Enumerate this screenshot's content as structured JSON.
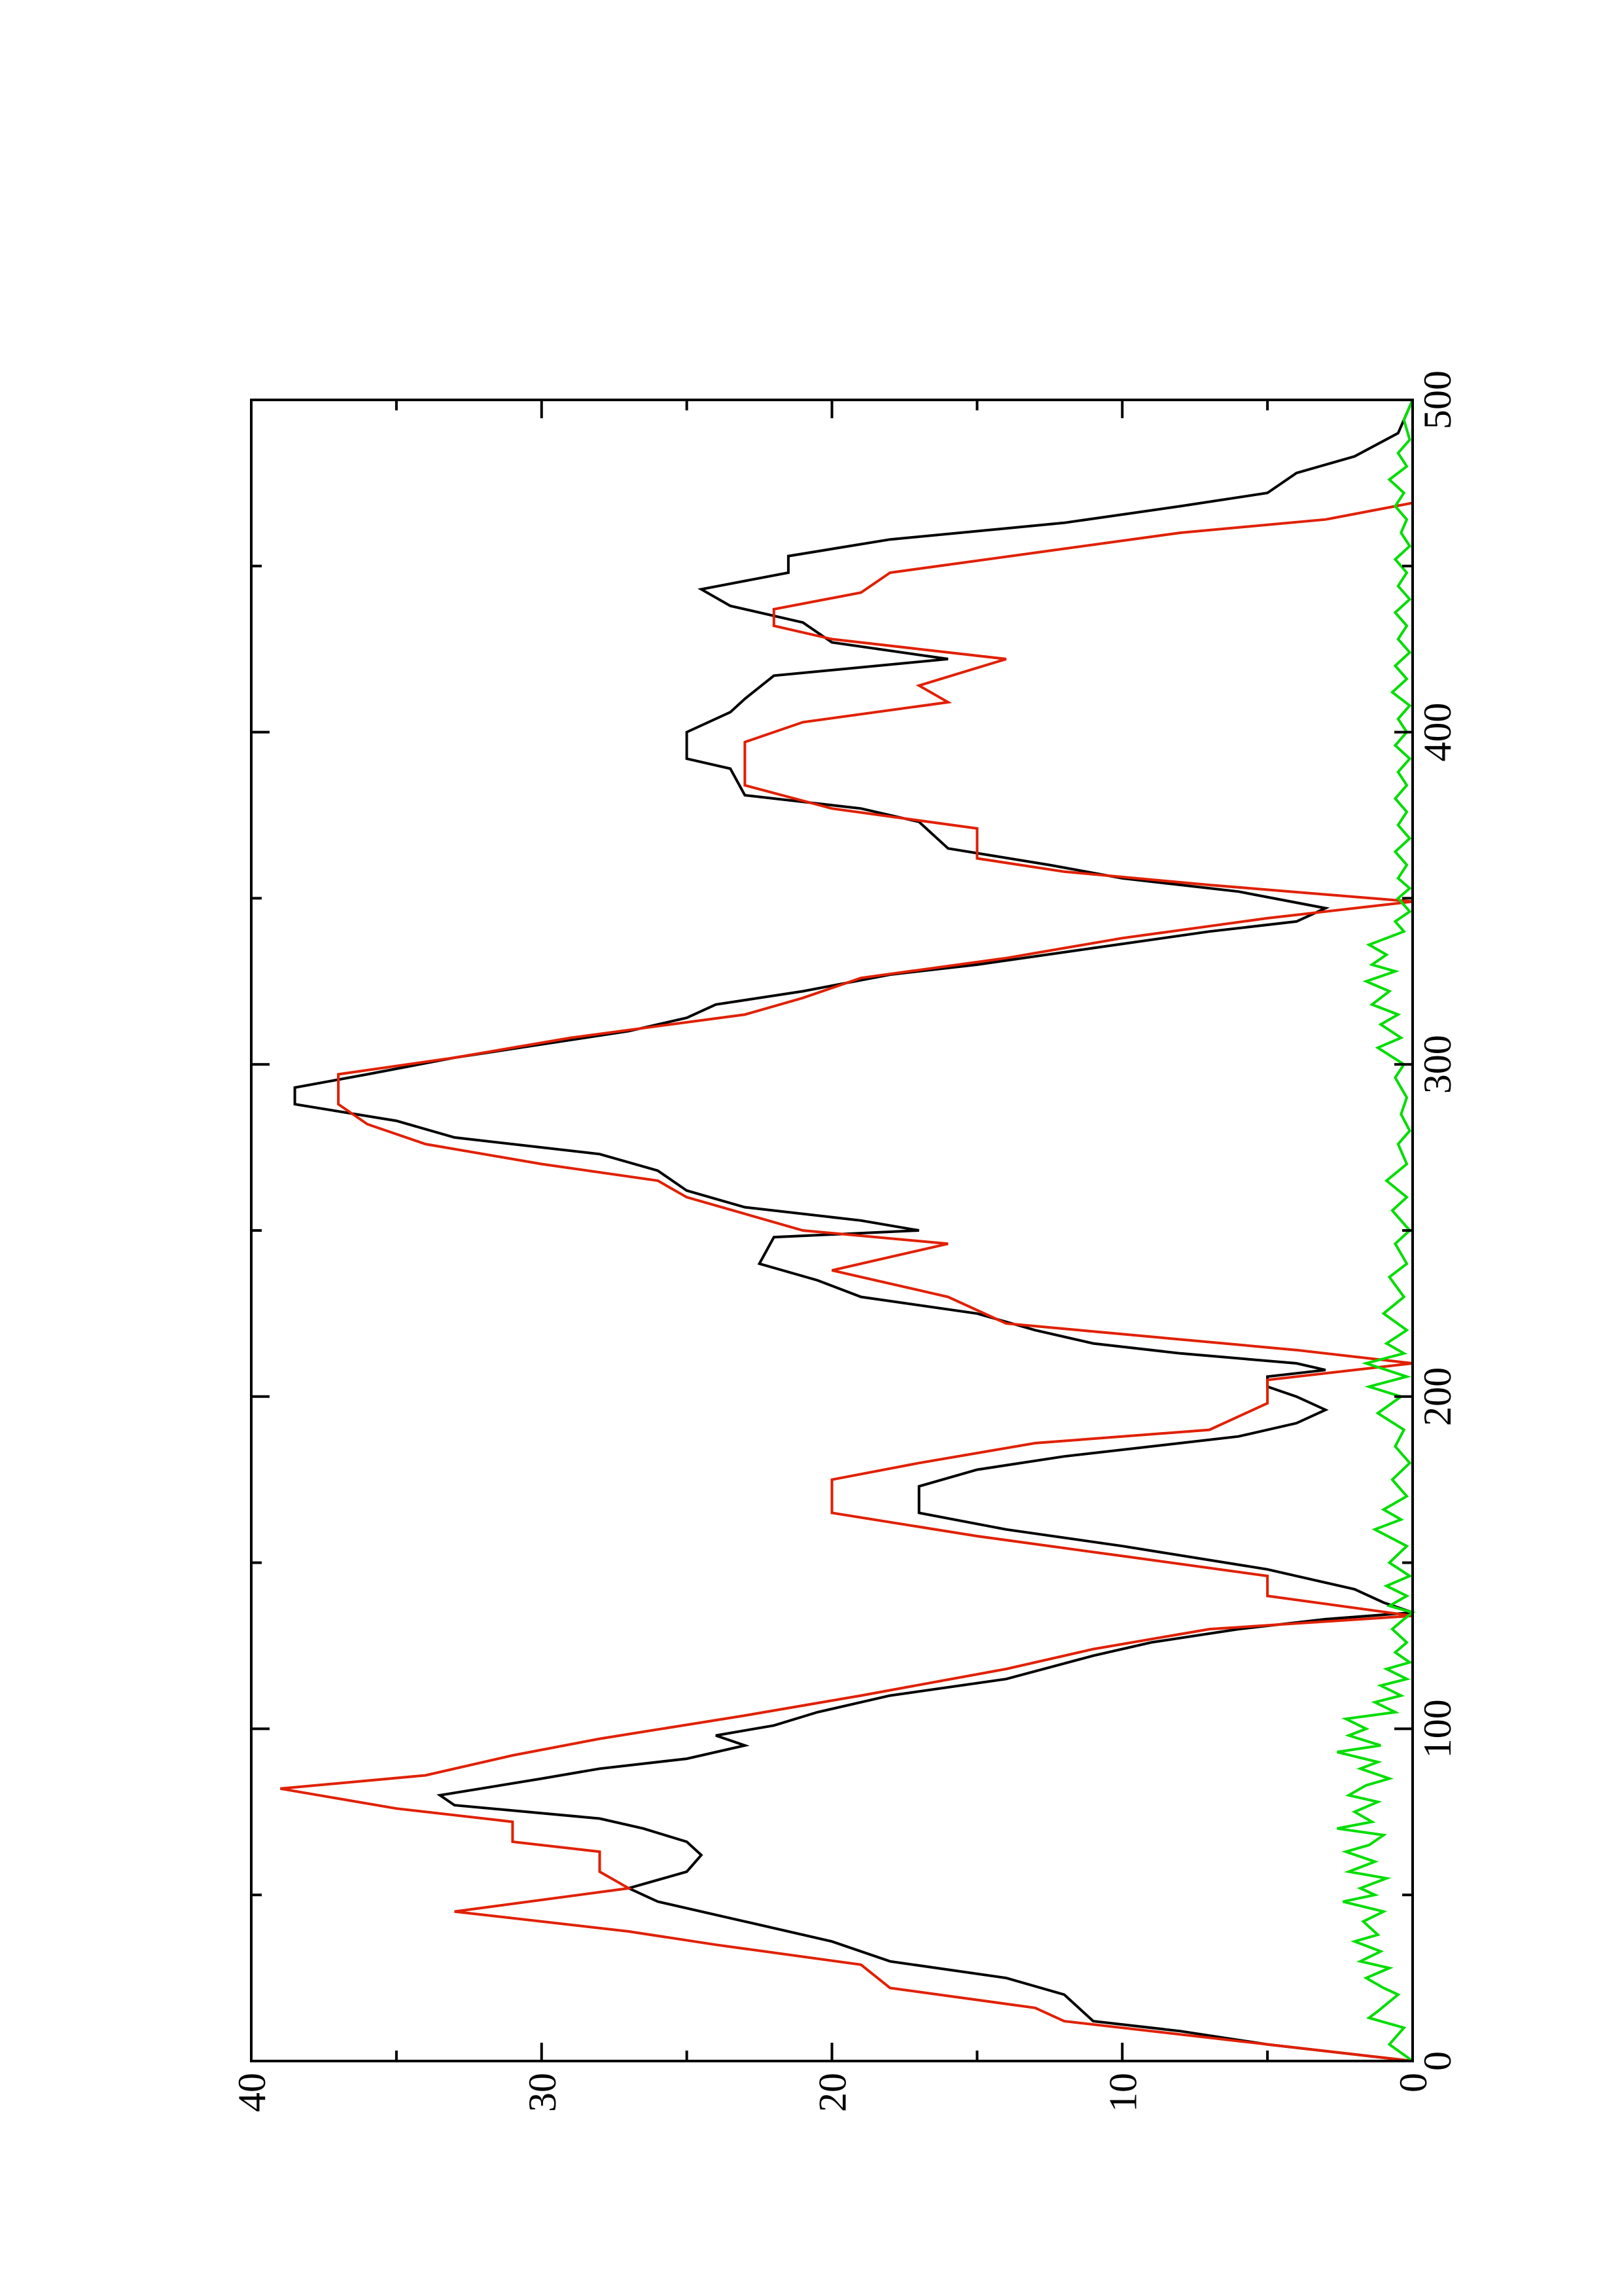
{
  "chart_data": {
    "type": "line",
    "orientation": "rotated-90-ccw",
    "title": "",
    "xlabel": "",
    "ylabel": "",
    "xlim": [
      0,
      500
    ],
    "ylim": [
      0,
      40
    ],
    "x_ticks": [
      0,
      100,
      200,
      300,
      400,
      500
    ],
    "y_ticks": [
      0,
      10,
      20,
      30,
      40
    ],
    "grid": false,
    "legend": "none",
    "series": [
      {
        "color": "#000000",
        "points": [
          [
            0,
            0
          ],
          [
            5,
            5
          ],
          [
            9,
            8
          ],
          [
            12,
            11
          ],
          [
            20,
            12
          ],
          [
            25,
            14
          ],
          [
            30,
            18
          ],
          [
            36,
            20
          ],
          [
            42,
            23
          ],
          [
            48,
            26
          ],
          [
            52,
            27
          ],
          [
            57,
            25
          ],
          [
            62,
            24.5
          ],
          [
            66,
            25
          ],
          [
            70,
            26.5
          ],
          [
            73,
            28
          ],
          [
            77,
            33
          ],
          [
            80,
            33.5
          ],
          [
            85,
            30
          ],
          [
            88,
            28
          ],
          [
            91,
            25
          ],
          [
            95,
            23
          ],
          [
            98,
            24
          ],
          [
            101,
            22
          ],
          [
            105,
            20.5
          ],
          [
            110,
            18
          ],
          [
            115,
            14
          ],
          [
            122,
            11
          ],
          [
            126,
            9
          ],
          [
            130,
            6
          ],
          [
            133,
            3
          ],
          [
            135,
            0
          ],
          [
            138,
            1
          ],
          [
            142,
            2
          ],
          [
            148,
            5
          ],
          [
            155,
            10
          ],
          [
            160,
            14
          ],
          [
            165,
            17
          ],
          [
            173,
            17
          ],
          [
            178,
            15
          ],
          [
            182,
            12
          ],
          [
            186,
            8
          ],
          [
            188,
            6
          ],
          [
            192,
            4
          ],
          [
            196,
            3
          ],
          [
            200,
            4
          ],
          [
            203,
            5
          ],
          [
            206,
            5
          ],
          [
            208,
            3
          ],
          [
            210,
            4
          ],
          [
            213,
            8
          ],
          [
            216,
            11
          ],
          [
            220,
            13
          ],
          [
            225,
            15
          ],
          [
            230,
            19
          ],
          [
            235,
            20.5
          ],
          [
            240,
            22.5
          ],
          [
            248,
            22
          ],
          [
            250,
            17
          ],
          [
            253,
            19
          ],
          [
            257,
            23
          ],
          [
            262,
            25
          ],
          [
            268,
            26
          ],
          [
            273,
            28
          ],
          [
            278,
            33
          ],
          [
            283,
            35
          ],
          [
            288,
            38.5
          ],
          [
            293,
            38.5
          ],
          [
            297,
            36
          ],
          [
            302,
            33
          ],
          [
            306,
            30
          ],
          [
            310,
            27
          ],
          [
            314,
            25
          ],
          [
            318,
            24
          ],
          [
            322,
            21
          ],
          [
            327,
            18
          ],
          [
            330,
            15
          ],
          [
            335,
            11
          ],
          [
            340,
            7
          ],
          [
            343,
            4
          ],
          [
            347,
            3
          ],
          [
            352,
            6
          ],
          [
            356,
            10
          ],
          [
            360,
            12.5
          ],
          [
            365,
            16
          ],
          [
            373,
            17
          ],
          [
            377,
            19
          ],
          [
            381,
            23
          ],
          [
            389,
            23.5
          ],
          [
            392,
            25
          ],
          [
            400,
            25
          ],
          [
            406,
            23.5
          ],
          [
            410,
            23
          ],
          [
            417,
            22
          ],
          [
            422,
            16
          ],
          [
            427,
            20
          ],
          [
            433,
            21
          ],
          [
            438,
            23.5
          ],
          [
            443,
            24.5
          ],
          [
            448,
            21.5
          ],
          [
            453,
            21.5
          ],
          [
            458,
            18
          ],
          [
            463,
            12
          ],
          [
            468,
            8
          ],
          [
            472,
            5
          ],
          [
            478,
            4
          ],
          [
            483,
            2
          ],
          [
            490,
            0.5
          ],
          [
            500,
            0
          ]
        ]
      },
      {
        "color": "#e02000",
        "points": [
          [
            0,
            0
          ],
          [
            6,
            6
          ],
          [
            12,
            12
          ],
          [
            16,
            13
          ],
          [
            22,
            18
          ],
          [
            29,
            19
          ],
          [
            35,
            24
          ],
          [
            39,
            27
          ],
          [
            45,
            33
          ],
          [
            52,
            27
          ],
          [
            57,
            28
          ],
          [
            63,
            28
          ],
          [
            66,
            31
          ],
          [
            72,
            31
          ],
          [
            76,
            35
          ],
          [
            82,
            39
          ],
          [
            86,
            34
          ],
          [
            92,
            31
          ],
          [
            97,
            28
          ],
          [
            104,
            23
          ],
          [
            110,
            19
          ],
          [
            118,
            14
          ],
          [
            124,
            11
          ],
          [
            130,
            7
          ],
          [
            134,
            0
          ],
          [
            140,
            5
          ],
          [
            146,
            5
          ],
          [
            152,
            10
          ],
          [
            158,
            15
          ],
          [
            165,
            20
          ],
          [
            175,
            20
          ],
          [
            180,
            17
          ],
          [
            186,
            13
          ],
          [
            190,
            7
          ],
          [
            198,
            5
          ],
          [
            205,
            5
          ],
          [
            210,
            0
          ],
          [
            214,
            4
          ],
          [
            218,
            9
          ],
          [
            222,
            14
          ],
          [
            230,
            16
          ],
          [
            238,
            20
          ],
          [
            246,
            16
          ],
          [
            250,
            21
          ],
          [
            255,
            23
          ],
          [
            260,
            25
          ],
          [
            265,
            26
          ],
          [
            270,
            30
          ],
          [
            276,
            34
          ],
          [
            282,
            36
          ],
          [
            288,
            37
          ],
          [
            297,
            37
          ],
          [
            302,
            33
          ],
          [
            308,
            29
          ],
          [
            315,
            23
          ],
          [
            320,
            21
          ],
          [
            326,
            19
          ],
          [
            332,
            14
          ],
          [
            338,
            10
          ],
          [
            344,
            5
          ],
          [
            349,
            0
          ],
          [
            354,
            7
          ],
          [
            358,
            12
          ],
          [
            362,
            15
          ],
          [
            371,
            15
          ],
          [
            377,
            20
          ],
          [
            384,
            23
          ],
          [
            393,
            23
          ],
          [
            397,
            23
          ],
          [
            403,
            21
          ],
          [
            409,
            16
          ],
          [
            414,
            17
          ],
          [
            422,
            14
          ],
          [
            428,
            20
          ],
          [
            432,
            22
          ],
          [
            437,
            22
          ],
          [
            442,
            19
          ],
          [
            448,
            18
          ],
          [
            454,
            13
          ],
          [
            460,
            8
          ],
          [
            464,
            3
          ],
          [
            469,
            0
          ],
          [
            500,
            0
          ]
        ]
      },
      {
        "color": "#00dd00",
        "points": [
          [
            0,
            0
          ],
          [
            5,
            0.8
          ],
          [
            10,
            0.3
          ],
          [
            13,
            1.5
          ],
          [
            15,
            1.2
          ],
          [
            20,
            0.5
          ],
          [
            22,
            1.0
          ],
          [
            25,
            1.6
          ],
          [
            28,
            0.8
          ],
          [
            30,
            1.8
          ],
          [
            33,
            1.1
          ],
          [
            36,
            2.0
          ],
          [
            38,
            1.2
          ],
          [
            42,
            1.7
          ],
          [
            45,
            1.0
          ],
          [
            48,
            2.4
          ],
          [
            50,
            1.3
          ],
          [
            52,
            1.8
          ],
          [
            55,
            0.9
          ],
          [
            57,
            2.2
          ],
          [
            60,
            1.3
          ],
          [
            63,
            2.3
          ],
          [
            65,
            1.5
          ],
          [
            68,
            1.0
          ],
          [
            70,
            2.6
          ],
          [
            72,
            1.4
          ],
          [
            75,
            2.0
          ],
          [
            78,
            1.2
          ],
          [
            80,
            2.2
          ],
          [
            83,
            1.6
          ],
          [
            85,
            0.8
          ],
          [
            88,
            1.8
          ],
          [
            90,
            1.2
          ],
          [
            93,
            2.6
          ],
          [
            95,
            1.1
          ],
          [
            98,
            2.2
          ],
          [
            100,
            1.6
          ],
          [
            103,
            2.3
          ],
          [
            105,
            0.6
          ],
          [
            108,
            1.3
          ],
          [
            110,
            0.4
          ],
          [
            113,
            1.1
          ],
          [
            115,
            0.2
          ],
          [
            118,
            0.9
          ],
          [
            120,
            0.1
          ],
          [
            123,
            0.6
          ],
          [
            126,
            0.2
          ],
          [
            130,
            0.7
          ],
          [
            133,
            0.3
          ],
          [
            135,
            0
          ],
          [
            137,
            0.8
          ],
          [
            140,
            0.2
          ],
          [
            143,
            0.9
          ],
          [
            146,
            0.1
          ],
          [
            150,
            0.8
          ],
          [
            155,
            0.2
          ],
          [
            160,
            1.3
          ],
          [
            163,
            0.4
          ],
          [
            166,
            1.0
          ],
          [
            170,
            0.2
          ],
          [
            175,
            0.7
          ],
          [
            180,
            0.1
          ],
          [
            185,
            0.6
          ],
          [
            190,
            0.3
          ],
          [
            195,
            1.2
          ],
          [
            200,
            0.4
          ],
          [
            203,
            1.5
          ],
          [
            206,
            0.2
          ],
          [
            210,
            1.6
          ],
          [
            213,
            0.3
          ],
          [
            216,
            0.9
          ],
          [
            220,
            0.2
          ],
          [
            225,
            1.0
          ],
          [
            230,
            0.3
          ],
          [
            236,
            0.8
          ],
          [
            240,
            0.2
          ],
          [
            246,
            0.6
          ],
          [
            250,
            0.1
          ],
          [
            256,
            0.7
          ],
          [
            260,
            0.2
          ],
          [
            265,
            0.9
          ],
          [
            270,
            0.2
          ],
          [
            276,
            0.5
          ],
          [
            280,
            0.1
          ],
          [
            285,
            0.4
          ],
          [
            290,
            0.2
          ],
          [
            296,
            0.6
          ],
          [
            300,
            0.3
          ],
          [
            305,
            1.2
          ],
          [
            308,
            0.4
          ],
          [
            312,
            1.1
          ],
          [
            315,
            0.5
          ],
          [
            318,
            1.4
          ],
          [
            322,
            0.8
          ],
          [
            325,
            1.6
          ],
          [
            328,
            0.6
          ],
          [
            330,
            1.4
          ],
          [
            333,
            0.9
          ],
          [
            336,
            1.5
          ],
          [
            340,
            0.3
          ],
          [
            343,
            0.6
          ],
          [
            346,
            0.1
          ],
          [
            350,
            0.5
          ],
          [
            353,
            0.1
          ],
          [
            356,
            0.5
          ],
          [
            360,
            0.2
          ],
          [
            364,
            0.6
          ],
          [
            368,
            0.1
          ],
          [
            372,
            0.5
          ],
          [
            376,
            0.2
          ],
          [
            380,
            0.6
          ],
          [
            384,
            0.2
          ],
          [
            388,
            0.5
          ],
          [
            392,
            0.1
          ],
          [
            396,
            0.6
          ],
          [
            400,
            0.2
          ],
          [
            404,
            0.5
          ],
          [
            408,
            0.1
          ],
          [
            412,
            0.7
          ],
          [
            416,
            0.2
          ],
          [
            420,
            0.6
          ],
          [
            424,
            0.1
          ],
          [
            428,
            0.5
          ],
          [
            432,
            0.2
          ],
          [
            436,
            0.6
          ],
          [
            440,
            0.1
          ],
          [
            444,
            0.5
          ],
          [
            448,
            0.2
          ],
          [
            452,
            0.6
          ],
          [
            456,
            0.1
          ],
          [
            460,
            0.4
          ],
          [
            464,
            0.2
          ],
          [
            468,
            0.6
          ],
          [
            472,
            0.3
          ],
          [
            476,
            0.8
          ],
          [
            480,
            0.2
          ],
          [
            484,
            0.5
          ],
          [
            488,
            0.1
          ],
          [
            494,
            0.3
          ],
          [
            500,
            0
          ]
        ]
      }
    ]
  }
}
